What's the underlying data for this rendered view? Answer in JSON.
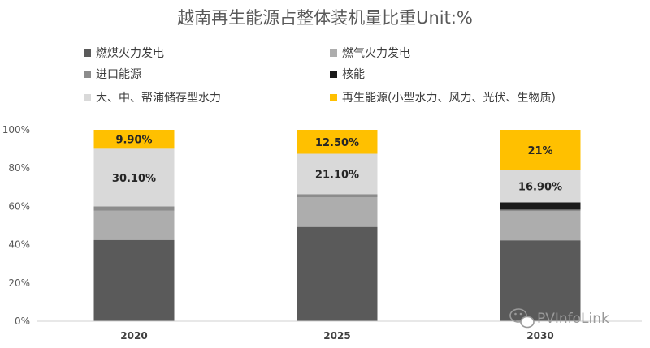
{
  "chart_data": {
    "type": "bar",
    "stacked": true,
    "title": "越南再生能源占整体装机量比重Unit:%",
    "categories": [
      "2020",
      "2025",
      "2030"
    ],
    "y_ticks": [
      "0%",
      "20%",
      "40%",
      "60%",
      "80%",
      "100%"
    ],
    "ylim": [
      0,
      100
    ],
    "legend_position": "top",
    "grid": false,
    "series": [
      {
        "name": "燃煤火力发电",
        "color": "#5a5a5a",
        "values": [
          42.5,
          49.3,
          42.3
        ],
        "labels": [
          "",
          "",
          ""
        ]
      },
      {
        "name": "燃气火力发电",
        "color": "#adadad",
        "values": [
          15.2,
          15.4,
          15.2
        ],
        "labels": [
          "",
          "",
          ""
        ]
      },
      {
        "name": "进口能源",
        "color": "#8c8c8c",
        "values": [
          2.3,
          1.7,
          0.8
        ],
        "labels": [
          "",
          "",
          ""
        ]
      },
      {
        "name": "核能",
        "color": "#1a1a1a",
        "values": [
          0,
          0,
          3.8
        ],
        "labels": [
          "",
          "",
          ""
        ]
      },
      {
        "name": "大、中、帮浦储存型水力",
        "color": "#d9d9d9",
        "values": [
          30.1,
          21.1,
          16.9
        ],
        "labels": [
          "30.10%",
          "21.10%",
          "16.90%"
        ]
      },
      {
        "name": "再生能源(小型水力、风力、光伏、生物质)",
        "color": "#ffc000",
        "values": [
          9.9,
          12.5,
          21.0
        ],
        "labels": [
          "9.90%",
          "12.50%",
          "21%"
        ]
      }
    ]
  },
  "legend_layout": [
    [
      0,
      1
    ],
    [
      2,
      3
    ],
    [
      4,
      5
    ]
  ],
  "watermark": {
    "text": "PVInfoLink",
    "icon": "wechat-icon"
  }
}
